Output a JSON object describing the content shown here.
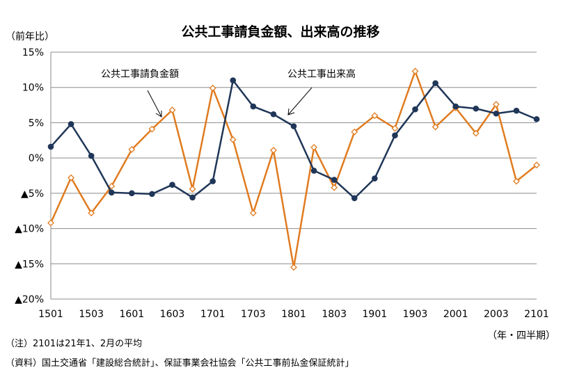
{
  "chart_data": {
    "type": "line",
    "title": "公共工事請負金額、出来高の推移",
    "ylabel": "（前年比）",
    "xlabel": "（年・四半期）",
    "ylim": [
      -20,
      15
    ],
    "yticks": [
      15,
      10,
      5,
      0,
      -5,
      -10,
      -15,
      -20
    ],
    "ytick_labels": [
      "15%",
      "10%",
      "5%",
      "0%",
      "▲5%",
      "▲10%",
      "▲15%",
      "▲20%"
    ],
    "x": [
      "1501",
      "1502",
      "1503",
      "1504",
      "1601",
      "1602",
      "1603",
      "1604",
      "1701",
      "1702",
      "1703",
      "1704",
      "1801",
      "1802",
      "1803",
      "1804",
      "1901",
      "1902",
      "1903",
      "1904",
      "2001",
      "2002",
      "2003",
      "2004",
      "2101"
    ],
    "xtick_labels": [
      "1501",
      "1503",
      "1601",
      "1603",
      "1701",
      "1703",
      "1801",
      "1803",
      "1901",
      "1903",
      "2001",
      "2003",
      "2101"
    ],
    "grid": true,
    "series": [
      {
        "name": "公共工事請負金額",
        "color": "#E07B1F",
        "marker": "open-diamond",
        "values": [
          -9.2,
          -2.8,
          -7.8,
          -4.0,
          1.2,
          4.1,
          6.8,
          -4.4,
          9.9,
          2.6,
          -7.8,
          1.1,
          -15.5,
          1.5,
          -4.2,
          3.7,
          6.0,
          4.2,
          12.3,
          4.4,
          7.1,
          3.5,
          7.6,
          -3.3,
          -1.0
        ]
      },
      {
        "name": "公共工事出来高",
        "color": "#1F3658",
        "marker": "filled-circle",
        "values": [
          1.6,
          4.8,
          0.3,
          -4.9,
          -5.0,
          -5.1,
          -3.8,
          -5.6,
          -3.3,
          11.0,
          7.3,
          6.2,
          4.5,
          -1.8,
          -3.1,
          -5.7,
          -2.9,
          3.2,
          6.9,
          10.6,
          7.3,
          7.0,
          6.3,
          6.7,
          5.5
        ]
      }
    ],
    "annotations": [
      {
        "text": "公共工事請負金額",
        "series": 0
      },
      {
        "text": "公共工事出来高",
        "series": 1
      }
    ]
  },
  "notes": [
    "（注）2101は21年1、2月の平均",
    "（資料）国土交通省「建設総合統計」、保証事業会社協会「公共工事前払金保証統計」"
  ]
}
